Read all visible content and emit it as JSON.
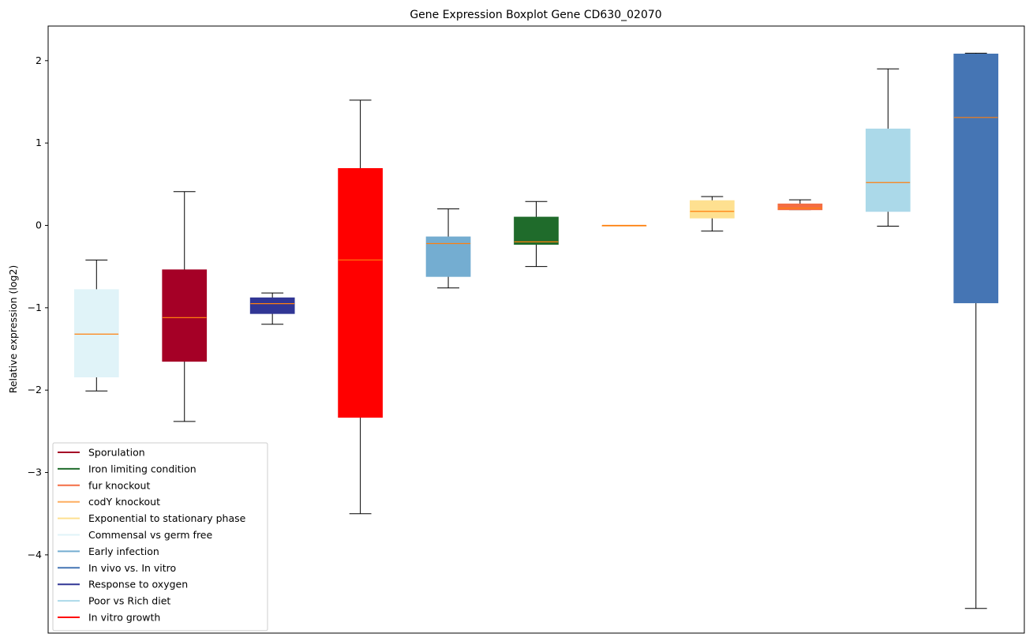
{
  "chart_data": {
    "type": "boxplot",
    "title": "Gene Expression Boxplot Gene CD630_02070",
    "xlabel": "",
    "ylabel": "Relative expression (log2)",
    "ylim": [
      -4.95,
      2.42
    ],
    "yticks": [
      2,
      1,
      0,
      -1,
      -2,
      -3,
      -4
    ],
    "ytick_labels": [
      "2",
      "1",
      "0",
      "−1",
      "−2",
      "−3",
      "−4"
    ],
    "grid": false,
    "legend_position": "lower-left",
    "median_color": "#ff7f0e",
    "boxes": [
      {
        "group": "Commensal vs germ free",
        "color": "#e0f3f8",
        "whislo": -2.01,
        "q1": -1.84,
        "med": -1.32,
        "q3": -0.78,
        "whishi": -0.42
      },
      {
        "group": "Sporulation",
        "color": "#a50026",
        "whislo": -2.38,
        "q1": -1.65,
        "med": -1.12,
        "q3": -0.54,
        "whishi": 0.41
      },
      {
        "group": "Response to oxygen",
        "color": "#313695",
        "whislo": -1.2,
        "q1": -1.07,
        "med": -0.95,
        "q3": -0.88,
        "whishi": -0.82
      },
      {
        "group": "In vitro growth",
        "color": "#ff0000",
        "whislo": -3.5,
        "q1": -2.33,
        "med": -0.42,
        "q3": 0.69,
        "whishi": 1.52
      },
      {
        "group": "Early infection",
        "color": "#74add1",
        "whislo": -0.76,
        "q1": -0.62,
        "med": -0.22,
        "q3": -0.14,
        "whishi": 0.2
      },
      {
        "group": "Iron limiting condition",
        "color": "#1f6b2b",
        "whislo": -0.5,
        "q1": -0.23,
        "med": -0.2,
        "q3": 0.1,
        "whishi": 0.29
      },
      {
        "group": "codY knockout",
        "color": "#fdae61",
        "whislo": 0.0,
        "q1": 0.0,
        "med": 0.0,
        "q3": 0.0,
        "whishi": 0.0
      },
      {
        "group": "Exponential to stationary phase",
        "color": "#fee090",
        "whislo": -0.07,
        "q1": 0.09,
        "med": 0.17,
        "q3": 0.3,
        "whishi": 0.35
      },
      {
        "group": "fur knockout",
        "color": "#f46d43",
        "whislo": 0.19,
        "q1": 0.19,
        "med": 0.21,
        "q3": 0.26,
        "whishi": 0.31
      },
      {
        "group": "Poor vs Rich diet",
        "color": "#abd9e9",
        "whislo": -0.01,
        "q1": 0.17,
        "med": 0.52,
        "q3": 1.17,
        "whishi": 1.9
      },
      {
        "group": "In vivo vs. In vitro",
        "color": "#4575b4",
        "whislo": -4.65,
        "q1": -0.94,
        "med": 1.31,
        "q3": 2.08,
        "whishi": 2.09
      }
    ],
    "legend": [
      {
        "label": "Sporulation",
        "color": "#a50026"
      },
      {
        "label": "Iron limiting condition",
        "color": "#1f6b2b"
      },
      {
        "label": "fur knockout",
        "color": "#f46d43"
      },
      {
        "label": "codY knockout",
        "color": "#fdae61"
      },
      {
        "label": "Exponential to stationary phase",
        "color": "#fee090"
      },
      {
        "label": "Commensal vs germ free",
        "color": "#e0f3f8"
      },
      {
        "label": "Early infection",
        "color": "#74add1"
      },
      {
        "label": "In vivo vs. In vitro",
        "color": "#4575b4"
      },
      {
        "label": "Response to oxygen",
        "color": "#313695"
      },
      {
        "label": "Poor vs Rich diet",
        "color": "#abd9e9"
      },
      {
        "label": "In vitro growth",
        "color": "#ff0000"
      }
    ]
  }
}
